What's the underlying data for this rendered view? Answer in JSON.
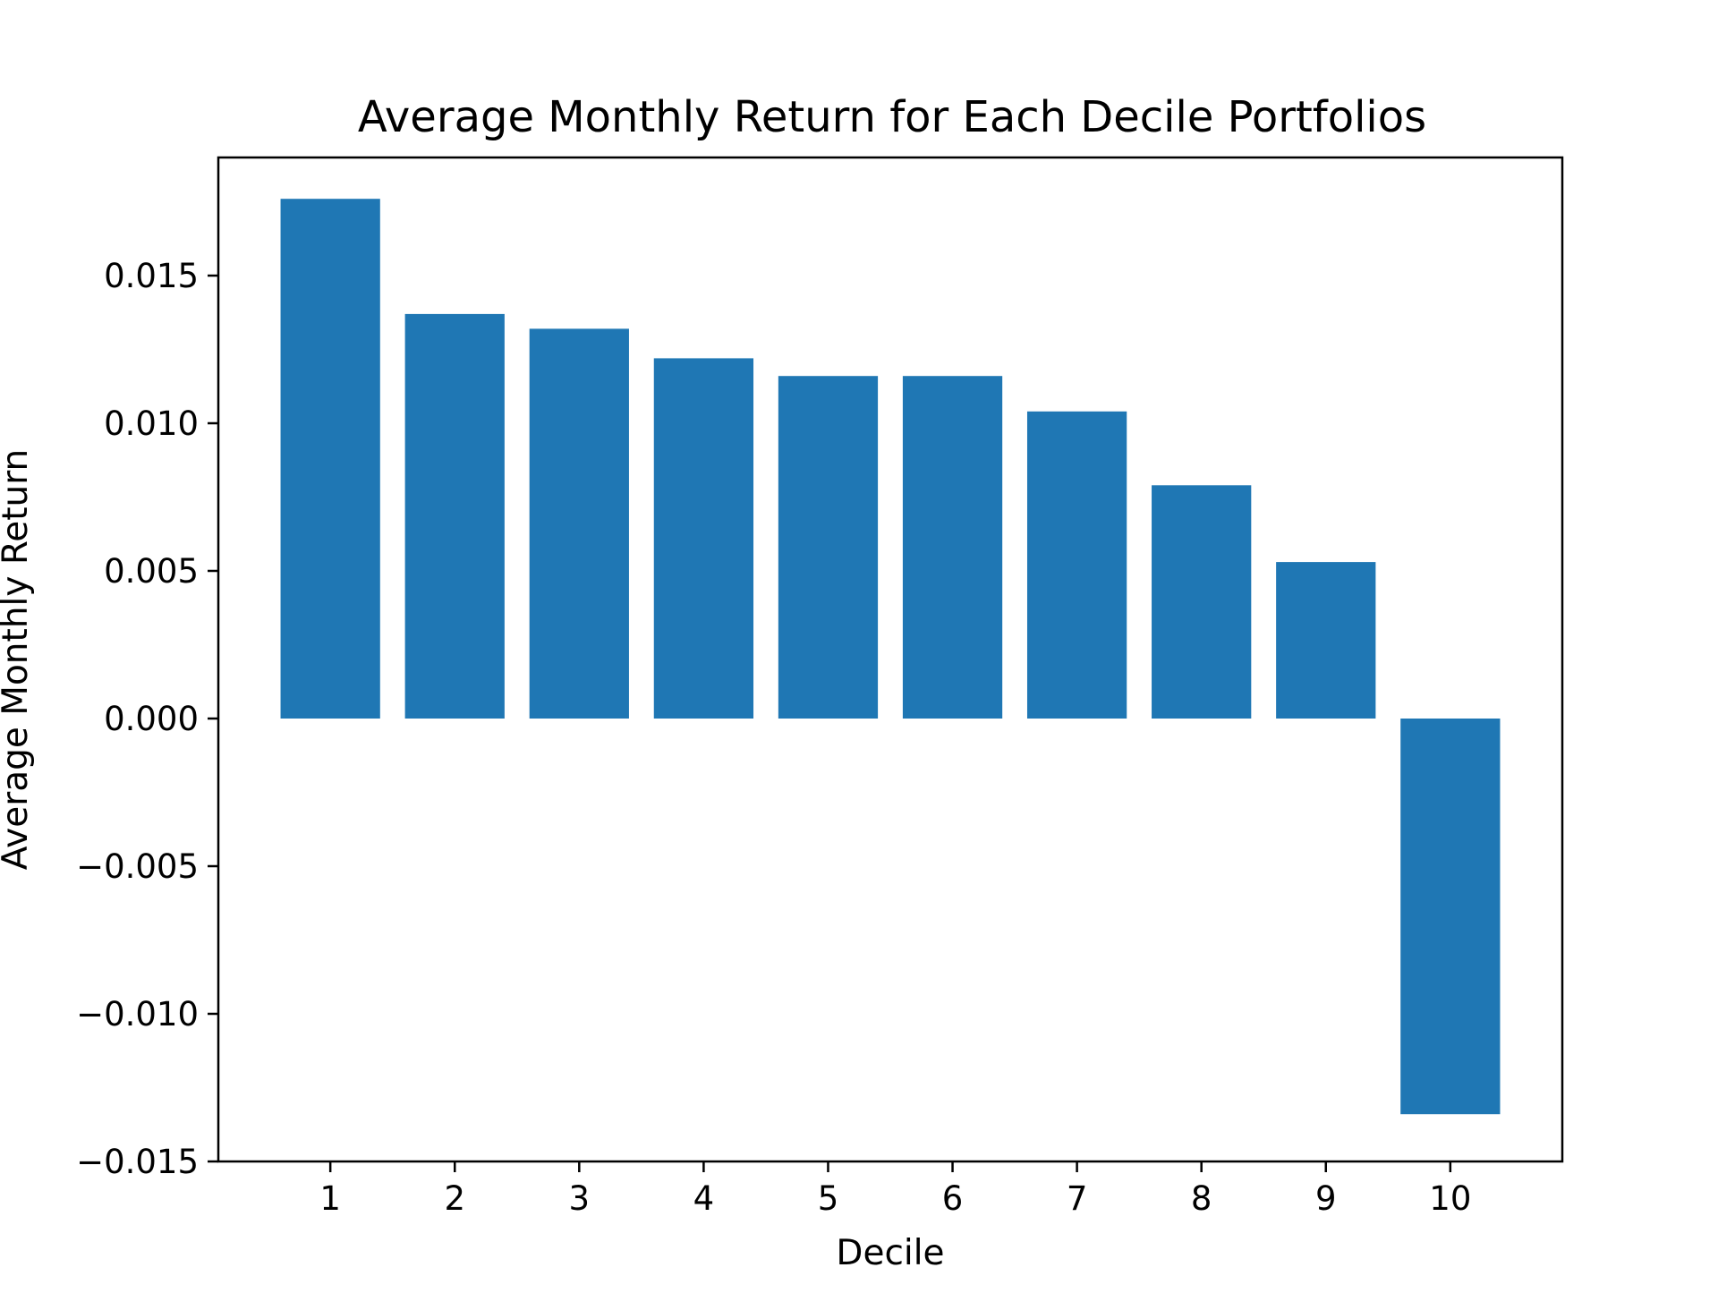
{
  "chart_data": {
    "type": "bar",
    "title": "Average Monthly Return for Each Decile Portfolios",
    "xlabel": "Decile",
    "ylabel": "Average Monthly Return",
    "categories": [
      "1",
      "2",
      "3",
      "4",
      "5",
      "6",
      "7",
      "8",
      "9",
      "10"
    ],
    "values": [
      0.0176,
      0.0137,
      0.0132,
      0.0122,
      0.0116,
      0.0116,
      0.0104,
      0.0079,
      0.0053,
      -0.0134
    ],
    "ylim": [
      -0.015,
      0.019
    ],
    "yticks": [
      -0.015,
      -0.01,
      -0.005,
      0.0,
      0.005,
      0.01,
      0.015
    ],
    "ytick_labels": [
      "−0.015",
      "−0.010",
      "−0.005",
      "0.000",
      "0.005",
      "0.010",
      "0.015"
    ],
    "grid": false,
    "bar_color": "#1f77b4"
  }
}
